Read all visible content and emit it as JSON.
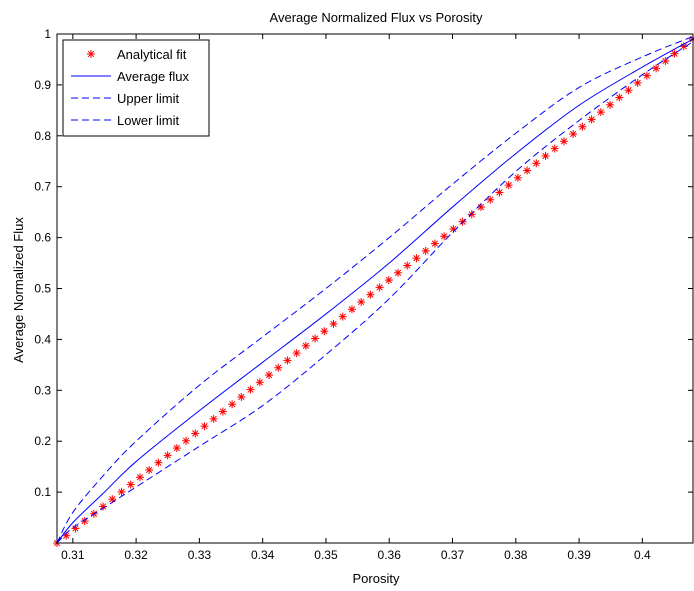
{
  "chart_data": {
    "type": "line",
    "title": "Average Normalized Flux vs Porosity",
    "xlabel": "Porosity",
    "ylabel": "Average Normalized Flux",
    "xlim": [
      0.3075,
      0.408
    ],
    "ylim": [
      0,
      1
    ],
    "xticks": [
      "0.31",
      "0.32",
      "0.33",
      "0.34",
      "0.35",
      "0.36",
      "0.37",
      "0.38",
      "0.39",
      "0.4"
    ],
    "yticks": [
      "0.1",
      "0.2",
      "0.3",
      "0.4",
      "0.5",
      "0.6",
      "0.7",
      "0.8",
      "0.9",
      "1"
    ],
    "grid": false,
    "legend_position": "top-left",
    "series": [
      {
        "name": "Analytical fit",
        "style": "red-star-markers",
        "color": "#ff0000",
        "x": [
          0.3075,
          0.408
        ],
        "y": [
          0.0,
          0.99
        ],
        "note": "points evenly spaced along x from 0.3075 to 0.408"
      },
      {
        "name": "Average flux",
        "style": "solid",
        "color": "#0000ff",
        "x": [
          0.3075,
          0.31,
          0.315,
          0.32,
          0.33,
          0.34,
          0.35,
          0.36,
          0.37,
          0.38,
          0.39,
          0.4,
          0.408
        ],
        "y": [
          0.0,
          0.04,
          0.1,
          0.16,
          0.26,
          0.355,
          0.45,
          0.55,
          0.66,
          0.765,
          0.86,
          0.935,
          0.99
        ]
      },
      {
        "name": "Upper limit",
        "style": "dashed",
        "color": "#0000ff",
        "x": [
          0.3075,
          0.31,
          0.315,
          0.32,
          0.33,
          0.34,
          0.35,
          0.36,
          0.37,
          0.38,
          0.39,
          0.4,
          0.408
        ],
        "y": [
          0.0,
          0.06,
          0.135,
          0.2,
          0.31,
          0.405,
          0.5,
          0.6,
          0.705,
          0.805,
          0.895,
          0.955,
          0.995
        ]
      },
      {
        "name": "Lower limit",
        "style": "dashed",
        "color": "#0000ff",
        "x": [
          0.3075,
          0.31,
          0.315,
          0.32,
          0.33,
          0.34,
          0.35,
          0.36,
          0.37,
          0.38,
          0.39,
          0.4,
          0.408
        ],
        "y": [
          0.0,
          0.03,
          0.07,
          0.11,
          0.19,
          0.27,
          0.37,
          0.48,
          0.61,
          0.73,
          0.83,
          0.92,
          0.985
        ]
      }
    ]
  }
}
